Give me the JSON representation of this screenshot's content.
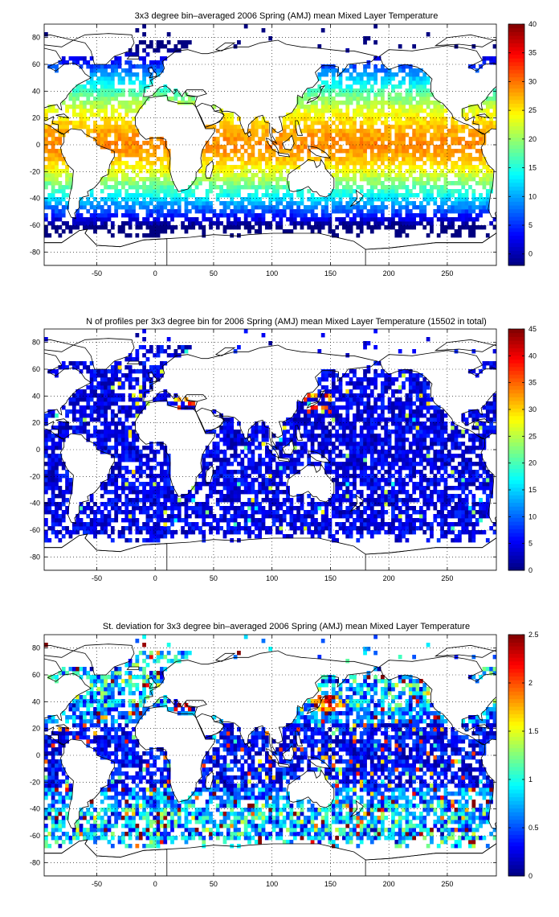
{
  "chart_data": [
    {
      "type": "heatmap",
      "title": "3x3 degree bin–averaged 2006 Spring (AMJ) mean Mixed Layer Temperature",
      "xlim": [
        -95,
        292
      ],
      "ylim": [
        -90,
        90
      ],
      "xticks": [
        -50,
        0,
        50,
        100,
        150,
        200,
        250
      ],
      "yticks": [
        -80,
        -60,
        -40,
        -20,
        0,
        20,
        40,
        60,
        80
      ],
      "grid": true,
      "colorbar": {
        "min": -2,
        "max": 40,
        "ticks": [
          0,
          5,
          10,
          15,
          20,
          25,
          30,
          35,
          40
        ]
      },
      "colormap": "jet",
      "bin_size_deg": 3,
      "pattern": "Warm waters about 26–30 near the equator, cooling with latitude to about 0 near 60S and about 5–10 near 60N."
    },
    {
      "type": "heatmap",
      "title": "N of profiles per 3x3 degree bin for 2006 Spring (AMJ) mean Mixed Layer Temperature  (15502 in total)",
      "xlim": [
        -95,
        292
      ],
      "ylim": [
        -90,
        90
      ],
      "xticks": [
        -50,
        0,
        50,
        100,
        150,
        200,
        250
      ],
      "yticks": [
        -80,
        -60,
        -40,
        -20,
        0,
        20,
        40,
        60,
        80
      ],
      "grid": true,
      "colorbar": {
        "min": 0,
        "max": 45,
        "ticks": [
          0,
          5,
          10,
          15,
          20,
          25,
          30,
          35,
          40,
          45
        ]
      },
      "colormap": "jet",
      "bin_size_deg": 3,
      "total_profiles": 15502,
      "pattern": "Mostly 1–8 profiles per bin, with hotspots up to about 40 near Japan (~35N, 140E) and in the Mediterranean."
    },
    {
      "type": "heatmap",
      "title": "St. deviation for 3x3 degree bin–averaged 2006 Spring (AMJ) mean Mixed Layer Temperature",
      "xlim": [
        -95,
        292
      ],
      "ylim": [
        -90,
        90
      ],
      "xticks": [
        -50,
        0,
        50,
        100,
        150,
        200,
        250
      ],
      "yticks": [
        -80,
        -60,
        -40,
        -20,
        0,
        20,
        40,
        60,
        80
      ],
      "grid": true,
      "colorbar": {
        "min": 0,
        "max": 2.5,
        "ticks": [
          0,
          0.5,
          1,
          1.5,
          2,
          2.5
        ]
      },
      "colormap": "jet",
      "bin_size_deg": 3,
      "pattern": "Mostly low (0.1–0.6) in tropics, higher in mid-latitudes and Southern Ocean; maxima about 2.5 near Japan and in the Mediterranean."
    }
  ]
}
